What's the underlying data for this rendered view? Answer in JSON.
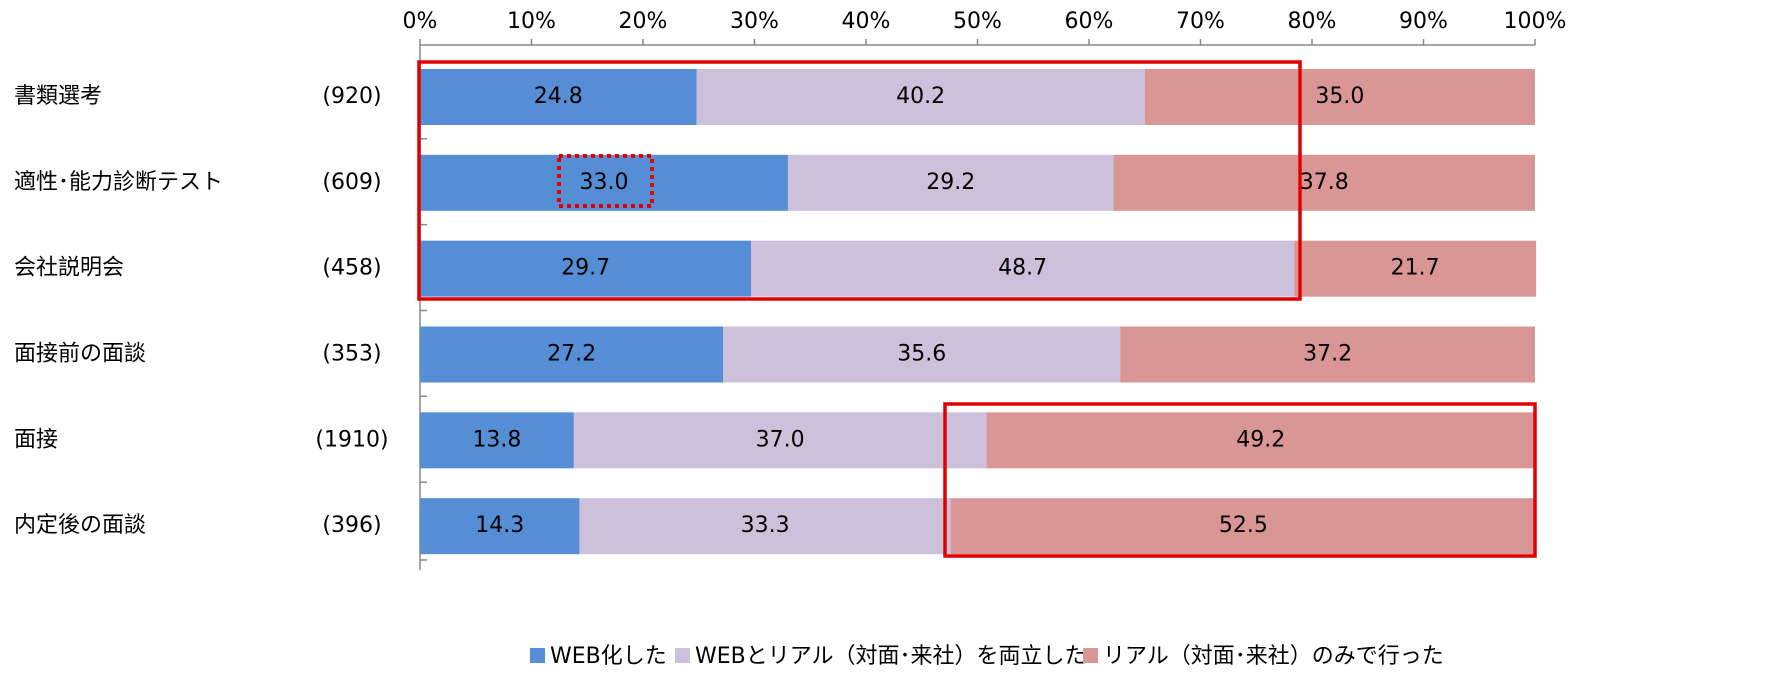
{
  "chart_data": {
    "type": "stacked-bar-horizontal",
    "categories": [
      "書類選考",
      "適性･能力診断テスト",
      "会社説明会",
      "面接前の面談",
      "面接",
      "内定後の面談"
    ],
    "counts": [
      "(920)",
      "(609)",
      "(458)",
      "(353)",
      "(1910)",
      "(396)"
    ],
    "series": [
      {
        "name": "WEB化した",
        "color": "#558ed5",
        "values": [
          24.8,
          33.0,
          29.7,
          27.2,
          13.8,
          14.3
        ],
        "value_labels": [
          "24.8",
          "33.0",
          "29.7",
          "27.2",
          "13.8",
          "14.3"
        ]
      },
      {
        "name": "WEBとリアル（対面･来社）を両立した",
        "color": "#ccc0da",
        "values": [
          40.2,
          29.2,
          48.7,
          35.6,
          37.0,
          33.3
        ],
        "value_labels": [
          "40.2",
          "29.2",
          "48.7",
          "35.6",
          "37.0",
          "33.3"
        ]
      },
      {
        "name": "リアル（対面･来社）のみで行った",
        "color": "#d99694",
        "values": [
          35.0,
          37.8,
          21.7,
          37.2,
          49.2,
          52.5
        ],
        "value_labels": [
          "35.0",
          "37.8",
          "21.7",
          "37.2",
          "49.2",
          "52.5"
        ]
      }
    ],
    "xlim": [
      0,
      100
    ],
    "xticks": [
      {
        "value": 0,
        "label": "0%"
      },
      {
        "value": 10,
        "label": "10%"
      },
      {
        "value": 20,
        "label": "20%"
      },
      {
        "value": 30,
        "label": "30%"
      },
      {
        "value": 40,
        "label": "40%"
      },
      {
        "value": 50,
        "label": "50%"
      },
      {
        "value": 60,
        "label": "60%"
      },
      {
        "value": 70,
        "label": "70%"
      },
      {
        "value": 80,
        "label": "80%"
      },
      {
        "value": 90,
        "label": "90%"
      },
      {
        "value": 100,
        "label": "100%"
      }
    ],
    "legend": "bottom"
  }
}
